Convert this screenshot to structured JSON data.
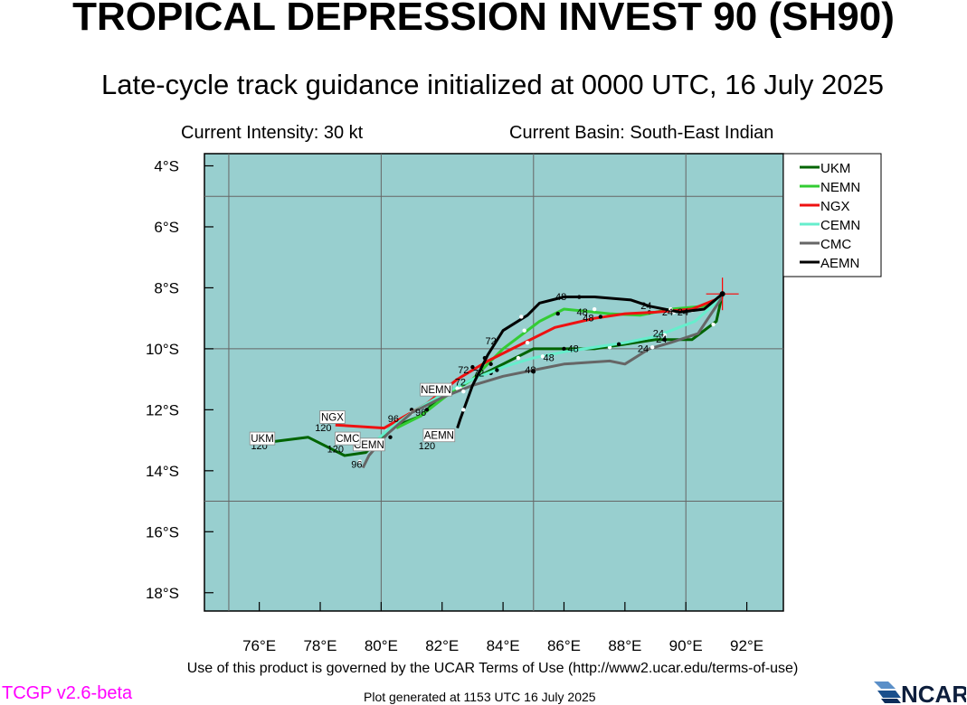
{
  "header": {
    "title": "TROPICAL DEPRESSION INVEST 90 (SH90)",
    "subtitle": "Late-cycle track guidance initialized at 0000 UTC, 16 July 2025",
    "intensity": "Current Intensity: 30 kt",
    "basin": "Current Basin: South-East Indian"
  },
  "footer": {
    "terms": "Use of this product is governed by the UCAR Terms of Use (http://www2.ucar.edu/terms-of-use)",
    "version": "TCGP v2.6-beta",
    "generated": "Plot generated at 1153 UTC   16 July 2025",
    "logo_text": "NCAR"
  },
  "colors": {
    "ocean": "#98cfcf",
    "grid": "#666666",
    "current_position_marker": "#ff0000",
    "version_text": "#ff00ff"
  },
  "chart_data": {
    "type": "map",
    "x_unit": "degrees longitude E",
    "y_unit": "degrees latitude S",
    "xlim": [
      74.2,
      93.2
    ],
    "ylim": [
      3.6,
      18.6
    ],
    "x_ticks": [
      {
        "value": 76,
        "label": "76°E"
      },
      {
        "value": 78,
        "label": "78°E"
      },
      {
        "value": 80,
        "label": "80°E"
      },
      {
        "value": 82,
        "label": "82°E"
      },
      {
        "value": 84,
        "label": "84°E"
      },
      {
        "value": 86,
        "label": "86°E"
      },
      {
        "value": 88,
        "label": "88°E"
      },
      {
        "value": 90,
        "label": "90°E"
      },
      {
        "value": 92,
        "label": "92°E"
      }
    ],
    "y_ticks": [
      {
        "value": 4,
        "label": "4°S"
      },
      {
        "value": 6,
        "label": "6°S"
      },
      {
        "value": 8,
        "label": "8°S"
      },
      {
        "value": 10,
        "label": "10°S"
      },
      {
        "value": 12,
        "label": "12°S"
      },
      {
        "value": 14,
        "label": "14°S"
      },
      {
        "value": 16,
        "label": "16°S"
      },
      {
        "value": 18,
        "label": "18°S"
      }
    ],
    "grid_lon": [
      75,
      80,
      85,
      90
    ],
    "grid_lat": [
      5,
      10,
      15
    ],
    "current_position": {
      "lon": 91.2,
      "lat": 8.2
    },
    "series": [
      {
        "name": "UKM",
        "color": "#006400",
        "track": [
          [
            91.2,
            8.2
          ],
          [
            91.0,
            9.1
          ],
          [
            90.2,
            9.7
          ],
          [
            89.0,
            9.7
          ],
          [
            87.0,
            10.0
          ],
          [
            85.0,
            10.0
          ],
          [
            83.2,
            10.9
          ],
          [
            82.0,
            11.5
          ],
          [
            81.3,
            12.2
          ],
          [
            80.3,
            12.6
          ],
          [
            79.5,
            13.4
          ],
          [
            78.8,
            13.5
          ],
          [
            77.6,
            12.9
          ],
          [
            76.0,
            13.1
          ]
        ],
        "hour_marks": [
          [
            90.9,
            9.2
          ],
          [
            89.3,
            9.7
          ],
          [
            87.5,
            9.95
          ],
          [
            86.0,
            10.0
          ],
          [
            84.5,
            10.3
          ],
          [
            83.6,
            10.8
          ],
          [
            82.3,
            11.35
          ],
          [
            81.0,
            12.0
          ],
          [
            80.2,
            12.7
          ]
        ],
        "labels": [
          {
            "text": "24",
            "lon": 89.2,
            "lat": 9.8
          },
          {
            "text": "48",
            "lon": 86.3,
            "lat": 10.1
          },
          {
            "text": "96",
            "lon": 82.1,
            "lat": 11.55
          },
          {
            "text": "120",
            "lon": 76.0,
            "lat": 13.3
          }
        ],
        "end_label": {
          "text": "UKM",
          "lon": 76.1,
          "lat": 13.0
        }
      },
      {
        "name": "NEMN",
        "color": "#33cc33",
        "track": [
          [
            91.2,
            8.3
          ],
          [
            90.6,
            8.6
          ],
          [
            89.5,
            8.7
          ],
          [
            88.5,
            8.9
          ],
          [
            87.5,
            8.85
          ],
          [
            86.0,
            8.7
          ],
          [
            85.2,
            9.1
          ],
          [
            84.0,
            10.0
          ],
          [
            83.0,
            11.0
          ],
          [
            82.2,
            11.5
          ],
          [
            81.3,
            12.2
          ],
          [
            80.5,
            12.6
          ]
        ],
        "hour_marks": [
          [
            90.2,
            8.75
          ],
          [
            88.8,
            8.8
          ],
          [
            87.0,
            8.7
          ],
          [
            85.8,
            8.85
          ],
          [
            84.7,
            9.4
          ],
          [
            83.6,
            10.5
          ],
          [
            82.6,
            11.3
          ],
          [
            81.5,
            12.0
          ]
        ],
        "labels": [
          {
            "text": "24",
            "lon": 89.9,
            "lat": 8.9
          },
          {
            "text": "48",
            "lon": 86.6,
            "lat": 8.9
          },
          {
            "text": "72",
            "lon": 83.2,
            "lat": 10.9
          },
          {
            "text": "96",
            "lon": 81.3,
            "lat": 12.2
          }
        ],
        "end_label": {
          "text": "NEMN",
          "lon": 81.8,
          "lat": 11.4
        }
      },
      {
        "name": "NGX",
        "color": "#ee1111",
        "track": [
          [
            91.2,
            8.3
          ],
          [
            90.2,
            8.7
          ],
          [
            89.0,
            8.8
          ],
          [
            88.0,
            8.85
          ],
          [
            87.0,
            9.0
          ],
          [
            85.7,
            9.3
          ],
          [
            84.5,
            9.9
          ],
          [
            83.5,
            10.4
          ],
          [
            82.5,
            11.0
          ],
          [
            81.5,
            11.8
          ],
          [
            80.8,
            12.2
          ],
          [
            80.1,
            12.6
          ],
          [
            78.5,
            12.5
          ]
        ],
        "hour_marks": [
          [
            89.6,
            8.8
          ],
          [
            87.2,
            8.95
          ],
          [
            84.8,
            9.8
          ],
          [
            83.0,
            10.6
          ],
          [
            81.0,
            12.1
          ]
        ],
        "labels": [
          {
            "text": "24",
            "lon": 88.7,
            "lat": 8.7
          },
          {
            "text": "48",
            "lon": 86.8,
            "lat": 9.1
          },
          {
            "text": "72",
            "lon": 82.7,
            "lat": 10.8
          },
          {
            "text": "96",
            "lon": 80.4,
            "lat": 12.4
          },
          {
            "text": "120",
            "lon": 78.1,
            "lat": 12.7
          }
        ],
        "end_label": {
          "text": "NGX",
          "lon": 78.4,
          "lat": 12.3
        }
      },
      {
        "name": "CEMN",
        "color": "#66eecc",
        "track": [
          [
            91.2,
            8.3
          ],
          [
            90.3,
            9.1
          ],
          [
            89.0,
            9.6
          ],
          [
            88.0,
            9.8
          ],
          [
            86.0,
            10.1
          ],
          [
            85.0,
            10.3
          ],
          [
            84.0,
            10.6
          ],
          [
            83.0,
            11.0
          ],
          [
            82.0,
            11.5
          ],
          [
            81.0,
            12.1
          ],
          [
            80.3,
            12.6
          ],
          [
            79.5,
            13.3
          ]
        ],
        "hour_marks": [
          [
            89.3,
            9.55
          ],
          [
            87.8,
            9.85
          ],
          [
            85.3,
            10.25
          ],
          [
            83.8,
            10.7
          ],
          [
            82.5,
            11.3
          ]
        ],
        "labels": [
          {
            "text": "24",
            "lon": 89.1,
            "lat": 9.6
          },
          {
            "text": "48",
            "lon": 85.5,
            "lat": 10.4
          },
          {
            "text": "72",
            "lon": 82.6,
            "lat": 11.2
          }
        ],
        "end_label": {
          "text": "CEMN",
          "lon": 79.6,
          "lat": 13.2
        }
      },
      {
        "name": "CMC",
        "color": "#666666",
        "track": [
          [
            91.2,
            8.3
          ],
          [
            90.4,
            9.5
          ],
          [
            89.5,
            9.8
          ],
          [
            88.8,
            10.0
          ],
          [
            88.0,
            10.5
          ],
          [
            87.5,
            10.4
          ],
          [
            86.0,
            10.5
          ],
          [
            85.0,
            10.7
          ],
          [
            84.0,
            10.9
          ],
          [
            83.0,
            11.2
          ],
          [
            82.0,
            11.6
          ],
          [
            81.0,
            12.1
          ],
          [
            80.2,
            12.8
          ],
          [
            79.6,
            13.5
          ],
          [
            79.4,
            13.9
          ]
        ],
        "hour_marks": [
          [
            88.9,
            9.95
          ],
          [
            85.0,
            10.75
          ],
          [
            82.7,
            11.4
          ],
          [
            80.3,
            12.9
          ],
          [
            79.3,
            13.7
          ]
        ],
        "labels": [
          {
            "text": "24",
            "lon": 88.6,
            "lat": 10.1
          },
          {
            "text": "48",
            "lon": 84.9,
            "lat": 10.8
          },
          {
            "text": "96",
            "lon": 79.2,
            "lat": 13.9
          },
          {
            "text": "120",
            "lon": 78.5,
            "lat": 13.4
          }
        ],
        "end_label": {
          "text": "CMC",
          "lon": 78.9,
          "lat": 13.0
        }
      },
      {
        "name": "AEMN",
        "color": "#000000",
        "track": [
          [
            91.2,
            8.2
          ],
          [
            90.6,
            8.7
          ],
          [
            89.8,
            8.8
          ],
          [
            88.8,
            8.6
          ],
          [
            88.2,
            8.4
          ],
          [
            87.0,
            8.3
          ],
          [
            86.0,
            8.3
          ],
          [
            85.2,
            8.5
          ],
          [
            84.8,
            8.9
          ],
          [
            84.0,
            9.4
          ],
          [
            83.5,
            10.2
          ],
          [
            83.0,
            11.2
          ],
          [
            82.6,
            12.3
          ],
          [
            82.5,
            12.6
          ]
        ],
        "hour_marks": [
          [
            89.5,
            8.7
          ],
          [
            86.5,
            8.3
          ],
          [
            84.6,
            8.95
          ],
          [
            83.4,
            10.3
          ],
          [
            82.7,
            12.0
          ]
        ],
        "labels": [
          {
            "text": "24",
            "lon": 89.4,
            "lat": 8.9
          },
          {
            "text": "48",
            "lon": 85.9,
            "lat": 8.4
          },
          {
            "text": "72",
            "lon": 83.6,
            "lat": 9.85
          },
          {
            "text": "120",
            "lon": 81.5,
            "lat": 13.3
          }
        ],
        "end_label": {
          "text": "AEMN",
          "lon": 81.9,
          "lat": 12.9
        }
      }
    ]
  }
}
